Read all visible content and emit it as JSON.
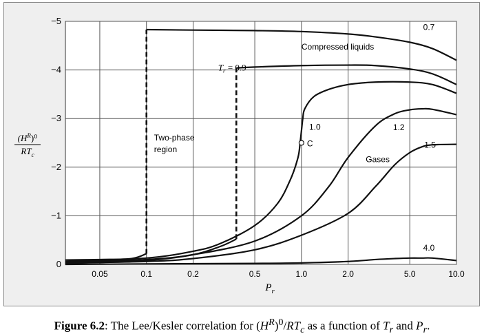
{
  "chart_data": {
    "type": "line",
    "title": "",
    "xscale": "log",
    "xlim": [
      0.03,
      10.0
    ],
    "ylim": [
      0,
      -5
    ],
    "x_ticks": [
      0.05,
      0.1,
      0.2,
      0.5,
      1.0,
      2.0,
      5.0,
      10.0
    ],
    "x_tick_labels": [
      "0.05",
      "0.1",
      "0.2",
      "0.5",
      "1.0",
      "2.0",
      "5.0",
      "10.0"
    ],
    "y_ticks": [
      0,
      -1,
      -2,
      -3,
      -4,
      -5
    ],
    "y_tick_labels": [
      "0",
      "−1",
      "−2",
      "−3",
      "−4",
      "−5"
    ],
    "xlabel": "P",
    "xlabel_sub": "r",
    "ylabel_num": "(H",
    "ylabel_num_sup": "R",
    "ylabel_num_tail": ")⁰",
    "ylabel_den": "RT",
    "ylabel_den_sub": "c",
    "grid": true,
    "series": [
      {
        "name": "0.7",
        "x": [
          0.1,
          0.2,
          0.5,
          1.0,
          2.0,
          3.0,
          5.0,
          7.0,
          10.0
        ],
        "y": [
          -4.83,
          -4.82,
          -4.81,
          -4.79,
          -4.74,
          -4.68,
          -4.57,
          -4.44,
          -4.2
        ]
      },
      {
        "name": "0.9",
        "x": [
          0.38,
          0.5,
          1.0,
          2.0,
          3.0,
          5.0,
          7.0,
          10.0
        ],
        "y": [
          -4.04,
          -4.06,
          -4.09,
          -4.1,
          -4.09,
          -4.02,
          -3.92,
          -3.7
        ]
      },
      {
        "name": "1.0",
        "x": [
          0.03,
          0.1,
          0.2,
          0.3,
          0.5,
          0.7,
          0.85,
          0.95,
          0.98,
          1.0,
          1.02,
          1.05,
          1.2,
          1.5,
          2.0,
          3.0,
          5.0,
          7.0,
          10.0
        ],
        "y": [
          -0.06,
          -0.13,
          -0.27,
          -0.43,
          -0.8,
          -1.25,
          -1.75,
          -2.2,
          -2.5,
          -2.75,
          -3.0,
          -3.2,
          -3.45,
          -3.6,
          -3.7,
          -3.75,
          -3.75,
          -3.7,
          -3.52
        ]
      },
      {
        "name": "1.2",
        "x": [
          0.03,
          0.1,
          0.2,
          0.5,
          1.0,
          1.5,
          2.0,
          3.0,
          4.0,
          5.0,
          6.0,
          7.0,
          10.0
        ],
        "y": [
          -0.04,
          -0.1,
          -0.2,
          -0.48,
          -1.0,
          -1.6,
          -2.2,
          -2.85,
          -3.1,
          -3.18,
          -3.2,
          -3.19,
          -3.08
        ]
      },
      {
        "name": "1.5",
        "x": [
          0.03,
          0.1,
          0.2,
          0.5,
          1.0,
          2.0,
          3.0,
          4.0,
          5.0,
          6.0,
          7.0,
          10.0
        ],
        "y": [
          -0.03,
          -0.06,
          -0.12,
          -0.3,
          -0.6,
          -1.05,
          -1.6,
          -2.05,
          -2.3,
          -2.42,
          -2.46,
          -2.47
        ]
      },
      {
        "name": "0.7 two-phase (liquid/vapor)",
        "dashed": true,
        "x": [
          0.03,
          0.05,
          0.08,
          0.1,
          0.1,
          0.1
        ],
        "y": [
          -0.09,
          -0.1,
          -0.12,
          -0.22,
          -2.5,
          -4.83
        ]
      },
      {
        "name": "0.9 two-phase (liquid/vapor)",
        "dashed": true,
        "x": [
          0.03,
          0.1,
          0.2,
          0.3,
          0.38,
          0.38,
          0.38
        ],
        "y": [
          -0.02,
          -0.08,
          -0.2,
          -0.37,
          -0.52,
          -2.3,
          -4.04
        ]
      },
      {
        "name": "4.0",
        "x": [
          0.03,
          0.1,
          0.5,
          1.0,
          2.0,
          3.0,
          4.0,
          5.0,
          6.0,
          7.0,
          10.0
        ],
        "y": [
          0.0,
          -0.01,
          -0.02,
          -0.03,
          -0.06,
          -0.1,
          -0.12,
          -0.13,
          -0.13,
          -0.13,
          -0.08
        ]
      }
    ],
    "critical_point": {
      "x": 1.0,
      "y": -2.5,
      "label": "C"
    },
    "annotations": [
      {
        "text": "0.7",
        "x": 6.1,
        "y": -4.82
      },
      {
        "text": "Compressed liquids",
        "x": 1.0,
        "y": -4.42
      },
      {
        "text": "1.0",
        "x": 1.12,
        "y": -2.77
      },
      {
        "text": "1.2",
        "x": 3.9,
        "y": -2.76
      },
      {
        "text": "1.5",
        "x": 6.2,
        "y": -2.4
      },
      {
        "text": "Gases",
        "x": 2.6,
        "y": -2.1
      },
      {
        "text": "4.0",
        "x": 6.1,
        "y": -0.28
      },
      {
        "text": "Two-phase",
        "x": 0.112,
        "y": -2.55
      },
      {
        "text": "region",
        "x": 0.112,
        "y": -2.31
      }
    ],
    "tr_label": {
      "prefix": "T",
      "sub": "r",
      "suffix": " = 0.9",
      "x": 0.29,
      "y": -3.99
    }
  },
  "caption": {
    "bold": "Figure 6.2",
    "text_1": ": The Lee/Kesler correlation for (",
    "H": "H",
    "R": "R",
    "text_2": ")",
    "zero": "0",
    "slash": "/",
    "RT": "RT",
    "c": "c",
    "text_3": " as a function of ",
    "T": "T",
    "r1": "r",
    "and": " and ",
    "P": "P",
    "r2": "r",
    "end": "."
  }
}
